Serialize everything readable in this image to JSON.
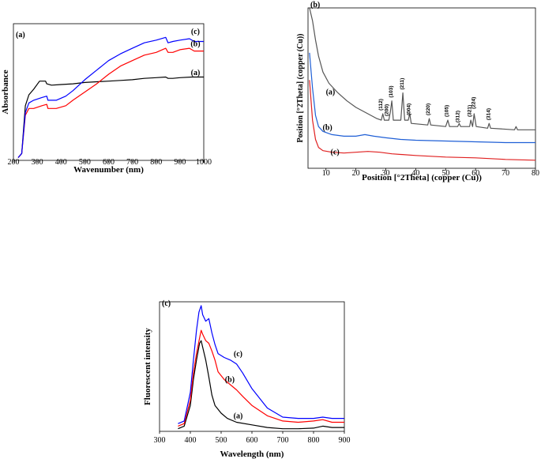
{
  "chart_data": [
    {
      "id": "a",
      "type": "line",
      "panel_label": "(a)",
      "xlabel": "Wavenumber (nm)",
      "ylabel": "Absorbance",
      "xlim": [
        200,
        1000
      ],
      "ylim": [
        0,
        1
      ],
      "xticks": [
        200,
        300,
        400,
        500,
        600,
        700,
        800,
        900,
        1000
      ],
      "yticks": [],
      "series": [
        {
          "label": "(a)",
          "color": "#000000",
          "points": [
            [
              220,
              0.02
            ],
            [
              235,
              0.05
            ],
            [
              250,
              0.4
            ],
            [
              265,
              0.48
            ],
            [
              285,
              0.52
            ],
            [
              310,
              0.58
            ],
            [
              335,
              0.58
            ],
            [
              340,
              0.56
            ],
            [
              360,
              0.55
            ],
            [
              400,
              0.555
            ],
            [
              450,
              0.56
            ],
            [
              500,
              0.57
            ],
            [
              550,
              0.575
            ],
            [
              600,
              0.58
            ],
            [
              650,
              0.585
            ],
            [
              700,
              0.59
            ],
            [
              750,
              0.6
            ],
            [
              800,
              0.605
            ],
            [
              840,
              0.61
            ],
            [
              850,
              0.6
            ],
            [
              870,
              0.6
            ],
            [
              900,
              0.605
            ],
            [
              950,
              0.61
            ],
            [
              1000,
              0.61
            ]
          ]
        },
        {
          "label": "(b)",
          "color": "#ff0000",
          "points": [
            [
              220,
              0.02
            ],
            [
              235,
              0.05
            ],
            [
              250,
              0.33
            ],
            [
              265,
              0.38
            ],
            [
              285,
              0.38
            ],
            [
              320,
              0.4
            ],
            [
              340,
              0.41
            ],
            [
              345,
              0.38
            ],
            [
              380,
              0.38
            ],
            [
              420,
              0.4
            ],
            [
              450,
              0.44
            ],
            [
              500,
              0.5
            ],
            [
              550,
              0.56
            ],
            [
              600,
              0.63
            ],
            [
              650,
              0.69
            ],
            [
              700,
              0.73
            ],
            [
              750,
              0.77
            ],
            [
              800,
              0.79
            ],
            [
              840,
              0.82
            ],
            [
              850,
              0.79
            ],
            [
              870,
              0.79
            ],
            [
              900,
              0.81
            ],
            [
              940,
              0.82
            ],
            [
              960,
              0.8
            ],
            [
              1000,
              0.8
            ]
          ]
        },
        {
          "label": "(c)",
          "color": "#0000ff",
          "points": [
            [
              220,
              0.02
            ],
            [
              235,
              0.05
            ],
            [
              250,
              0.35
            ],
            [
              265,
              0.42
            ],
            [
              285,
              0.44
            ],
            [
              320,
              0.46
            ],
            [
              340,
              0.47
            ],
            [
              345,
              0.44
            ],
            [
              380,
              0.44
            ],
            [
              420,
              0.47
            ],
            [
              450,
              0.51
            ],
            [
              500,
              0.59
            ],
            [
              550,
              0.66
            ],
            [
              600,
              0.73
            ],
            [
              650,
              0.78
            ],
            [
              700,
              0.82
            ],
            [
              750,
              0.86
            ],
            [
              800,
              0.88
            ],
            [
              840,
              0.9
            ],
            [
              850,
              0.86
            ],
            [
              870,
              0.87
            ],
            [
              900,
              0.88
            ],
            [
              940,
              0.89
            ],
            [
              960,
              0.87
            ],
            [
              1000,
              0.87
            ]
          ]
        }
      ],
      "annotations": [
        {
          "text": "(c)",
          "x": 965,
          "y": 0.925
        },
        {
          "text": "(b)",
          "x": 965,
          "y": 0.835
        },
        {
          "text": "(a)",
          "x": 965,
          "y": 0.625
        }
      ]
    },
    {
      "id": "b",
      "type": "line",
      "panel_label": "(b)",
      "xlabel": "Position [°2Theta] (copper (Cu))",
      "ylabel": "Position [°2Theta] (copper (Cu))",
      "xlim": [
        4,
        80
      ],
      "ylim": [
        0,
        1
      ],
      "xticks": [
        10,
        20,
        30,
        40,
        50,
        60,
        70,
        80
      ],
      "yticks": [],
      "series": [
        {
          "label": "(a)",
          "color": "#555555",
          "points": [
            [
              4.5,
              1.0
            ],
            [
              5.5,
              0.92
            ],
            [
              6.5,
              0.8
            ],
            [
              7.5,
              0.7
            ],
            [
              9,
              0.6
            ],
            [
              11,
              0.53
            ],
            [
              14,
              0.47
            ],
            [
              17,
              0.42
            ],
            [
              20,
              0.38
            ],
            [
              24,
              0.34
            ],
            [
              27,
              0.31
            ],
            [
              28.5,
              0.3
            ],
            [
              29,
              0.34
            ],
            [
              29.5,
              0.3
            ],
            [
              31,
              0.3
            ],
            [
              31.5,
              0.35
            ],
            [
              32,
              0.42
            ],
            [
              32.5,
              0.3
            ],
            [
              35,
              0.3
            ],
            [
              35.7,
              0.47
            ],
            [
              36.3,
              0.3
            ],
            [
              37.5,
              0.3
            ],
            [
              38,
              0.34
            ],
            [
              38.5,
              0.28
            ],
            [
              44,
              0.27
            ],
            [
              44.5,
              0.31
            ],
            [
              45,
              0.27
            ],
            [
              50,
              0.26
            ],
            [
              50.7,
              0.3
            ],
            [
              51.3,
              0.26
            ],
            [
              54,
              0.26
            ],
            [
              54.5,
              0.28
            ],
            [
              55,
              0.26
            ],
            [
              58,
              0.26
            ],
            [
              58.4,
              0.3
            ],
            [
              59,
              0.26
            ],
            [
              59.5,
              0.34
            ],
            [
              60.2,
              0.26
            ],
            [
              64,
              0.25
            ],
            [
              64.5,
              0.28
            ],
            [
              65,
              0.25
            ],
            [
              73,
              0.24
            ],
            [
              73.5,
              0.26
            ],
            [
              74,
              0.24
            ],
            [
              80,
              0.24
            ]
          ]
        },
        {
          "label": "(b)",
          "color": "#1f5fd6",
          "points": [
            [
              4.5,
              0.72
            ],
            [
              5.5,
              0.5
            ],
            [
              6.5,
              0.33
            ],
            [
              7.5,
              0.26
            ],
            [
              9,
              0.23
            ],
            [
              12,
              0.21
            ],
            [
              16,
              0.2
            ],
            [
              20,
              0.2
            ],
            [
              23,
              0.21
            ],
            [
              26,
              0.2
            ],
            [
              30,
              0.19
            ],
            [
              35,
              0.18
            ],
            [
              40,
              0.175
            ],
            [
              50,
              0.17
            ],
            [
              60,
              0.165
            ],
            [
              70,
              0.16
            ],
            [
              80,
              0.16
            ]
          ]
        },
        {
          "label": "(c)",
          "color": "#e02020",
          "points": [
            [
              4.5,
              0.55
            ],
            [
              5.5,
              0.3
            ],
            [
              6.5,
              0.18
            ],
            [
              7.5,
              0.13
            ],
            [
              9,
              0.11
            ],
            [
              12,
              0.1
            ],
            [
              16,
              0.095
            ],
            [
              20,
              0.1
            ],
            [
              24,
              0.105
            ],
            [
              28,
              0.1
            ],
            [
              32,
              0.09
            ],
            [
              40,
              0.08
            ],
            [
              50,
              0.07
            ],
            [
              60,
              0.065
            ],
            [
              70,
              0.055
            ],
            [
              80,
              0.05
            ]
          ]
        }
      ],
      "peak_labels": [
        {
          "text": "(112)",
          "x": 28.8,
          "y": 0.36
        },
        {
          "text": "(200)",
          "x": 30.8,
          "y": 0.325
        },
        {
          "text": "(103)",
          "x": 32.2,
          "y": 0.44
        },
        {
          "text": "(211)",
          "x": 35.9,
          "y": 0.49
        },
        {
          "text": "(004)",
          "x": 38.2,
          "y": 0.33
        },
        {
          "text": "(220)",
          "x": 44.6,
          "y": 0.33
        },
        {
          "text": "(105)",
          "x": 50.9,
          "y": 0.32
        },
        {
          "text": "(312)",
          "x": 54.6,
          "y": 0.285
        },
        {
          "text": "(321)",
          "x": 58.5,
          "y": 0.32
        },
        {
          "text": "(224)",
          "x": 59.8,
          "y": 0.37
        },
        {
          "text": "(314)",
          "x": 64.8,
          "y": 0.3
        }
      ],
      "annotations": [
        {
          "text": "(a)",
          "x": 11.5,
          "y": 0.46
        },
        {
          "text": "(b)",
          "x": 10.5,
          "y": 0.24
        },
        {
          "text": "(c)",
          "x": 13,
          "y": 0.085
        }
      ]
    },
    {
      "id": "c",
      "type": "line",
      "panel_label": "(c)",
      "xlabel": "Wavelength (nm)",
      "ylabel": "Fluorescent intensity",
      "xlim": [
        300,
        900
      ],
      "ylim": [
        0,
        1
      ],
      "xticks": [
        300,
        400,
        500,
        600,
        700,
        800,
        900
      ],
      "yticks": [],
      "series": [
        {
          "label": "(a)",
          "color": "#000000",
          "points": [
            [
              360,
              0.02
            ],
            [
              380,
              0.04
            ],
            [
              400,
              0.2
            ],
            [
              410,
              0.4
            ],
            [
              420,
              0.55
            ],
            [
              430,
              0.68
            ],
            [
              435,
              0.7
            ],
            [
              440,
              0.65
            ],
            [
              450,
              0.55
            ],
            [
              460,
              0.42
            ],
            [
              470,
              0.28
            ],
            [
              480,
              0.2
            ],
            [
              500,
              0.14
            ],
            [
              520,
              0.1
            ],
            [
              550,
              0.07
            ],
            [
              600,
              0.05
            ],
            [
              650,
              0.03
            ],
            [
              700,
              0.02
            ],
            [
              750,
              0.02
            ],
            [
              800,
              0.025
            ],
            [
              830,
              0.04
            ],
            [
              860,
              0.03
            ],
            [
              900,
              0.03
            ]
          ]
        },
        {
          "label": "(b)",
          "color": "#ff0000",
          "points": [
            [
              360,
              0.04
            ],
            [
              380,
              0.06
            ],
            [
              400,
              0.24
            ],
            [
              410,
              0.45
            ],
            [
              420,
              0.6
            ],
            [
              430,
              0.72
            ],
            [
              435,
              0.78
            ],
            [
              440,
              0.75
            ],
            [
              450,
              0.7
            ],
            [
              460,
              0.68
            ],
            [
              470,
              0.62
            ],
            [
              480,
              0.55
            ],
            [
              490,
              0.46
            ],
            [
              510,
              0.4
            ],
            [
              530,
              0.36
            ],
            [
              550,
              0.32
            ],
            [
              570,
              0.27
            ],
            [
              600,
              0.2
            ],
            [
              650,
              0.12
            ],
            [
              700,
              0.08
            ],
            [
              750,
              0.07
            ],
            [
              800,
              0.08
            ],
            [
              830,
              0.09
            ],
            [
              860,
              0.07
            ],
            [
              900,
              0.07
            ]
          ]
        },
        {
          "label": "(c)",
          "color": "#0000ff",
          "points": [
            [
              360,
              0.06
            ],
            [
              380,
              0.08
            ],
            [
              400,
              0.3
            ],
            [
              410,
              0.55
            ],
            [
              420,
              0.78
            ],
            [
              428,
              0.92
            ],
            [
              435,
              0.97
            ],
            [
              440,
              0.9
            ],
            [
              450,
              0.85
            ],
            [
              460,
              0.87
            ],
            [
              470,
              0.76
            ],
            [
              480,
              0.67
            ],
            [
              490,
              0.6
            ],
            [
              510,
              0.57
            ],
            [
              530,
              0.55
            ],
            [
              550,
              0.52
            ],
            [
              570,
              0.45
            ],
            [
              600,
              0.33
            ],
            [
              650,
              0.18
            ],
            [
              700,
              0.11
            ],
            [
              750,
              0.1
            ],
            [
              800,
              0.1
            ],
            [
              830,
              0.11
            ],
            [
              860,
              0.1
            ],
            [
              900,
              0.1
            ]
          ]
        }
      ],
      "annotations": [
        {
          "text": "(c)",
          "x": 555,
          "y": 0.58
        },
        {
          "text": "(b)",
          "x": 528,
          "y": 0.38
        },
        {
          "text": "(a)",
          "x": 555,
          "y": 0.1
        }
      ]
    }
  ]
}
